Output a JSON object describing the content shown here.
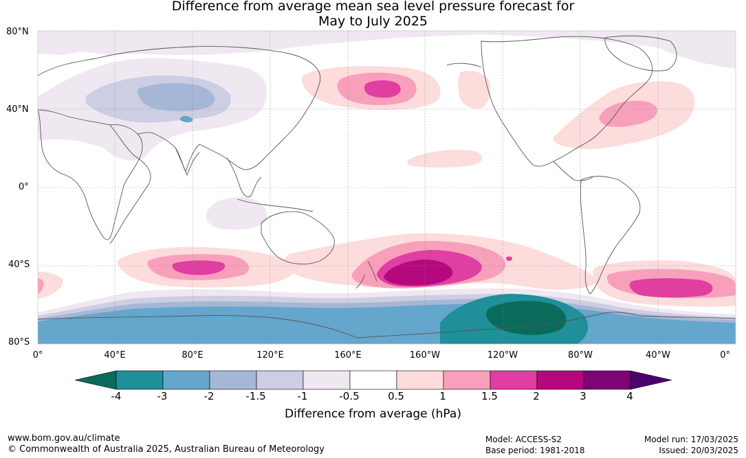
{
  "title": {
    "line1": "Difference from average mean sea level pressure forecast for",
    "line2": "May to July 2025"
  },
  "map": {
    "lat_labels": [
      "80°N",
      "40°N",
      "0°",
      "40°S",
      "80°S"
    ],
    "lon_labels": [
      "0°",
      "40°E",
      "80°E",
      "120°E",
      "160°E",
      "160°W",
      "120°W",
      "80°W",
      "40°W",
      "0°"
    ]
  },
  "colorbar": {
    "tick_labels": [
      "-4",
      "-3",
      "-2",
      "-1.5",
      "-1",
      "-0.5",
      "0.5",
      "1",
      "1.5",
      "2",
      "3",
      "4"
    ],
    "colors": [
      "#0a6b5c",
      "#1f8f99",
      "#64a6cc",
      "#a6b6d6",
      "#cdcde3",
      "#efe8f0",
      "#ffffff",
      "#fddcdc",
      "#f8a0bb",
      "#e03ea0",
      "#b5087f",
      "#7f0277",
      "#4d006b"
    ],
    "title": "Difference from average (hPa)"
  },
  "footer": {
    "website": "www.bom.gov.au/climate",
    "copyright": "© Commonwealth of Australia 2025, Australian Bureau of Meteorology",
    "model": "Model: ACCESS-S2",
    "base_period": "Base period: 1981-2018",
    "model_run": "Model run: 17/03/2025",
    "issued": "Issued: 20/03/2025"
  }
}
